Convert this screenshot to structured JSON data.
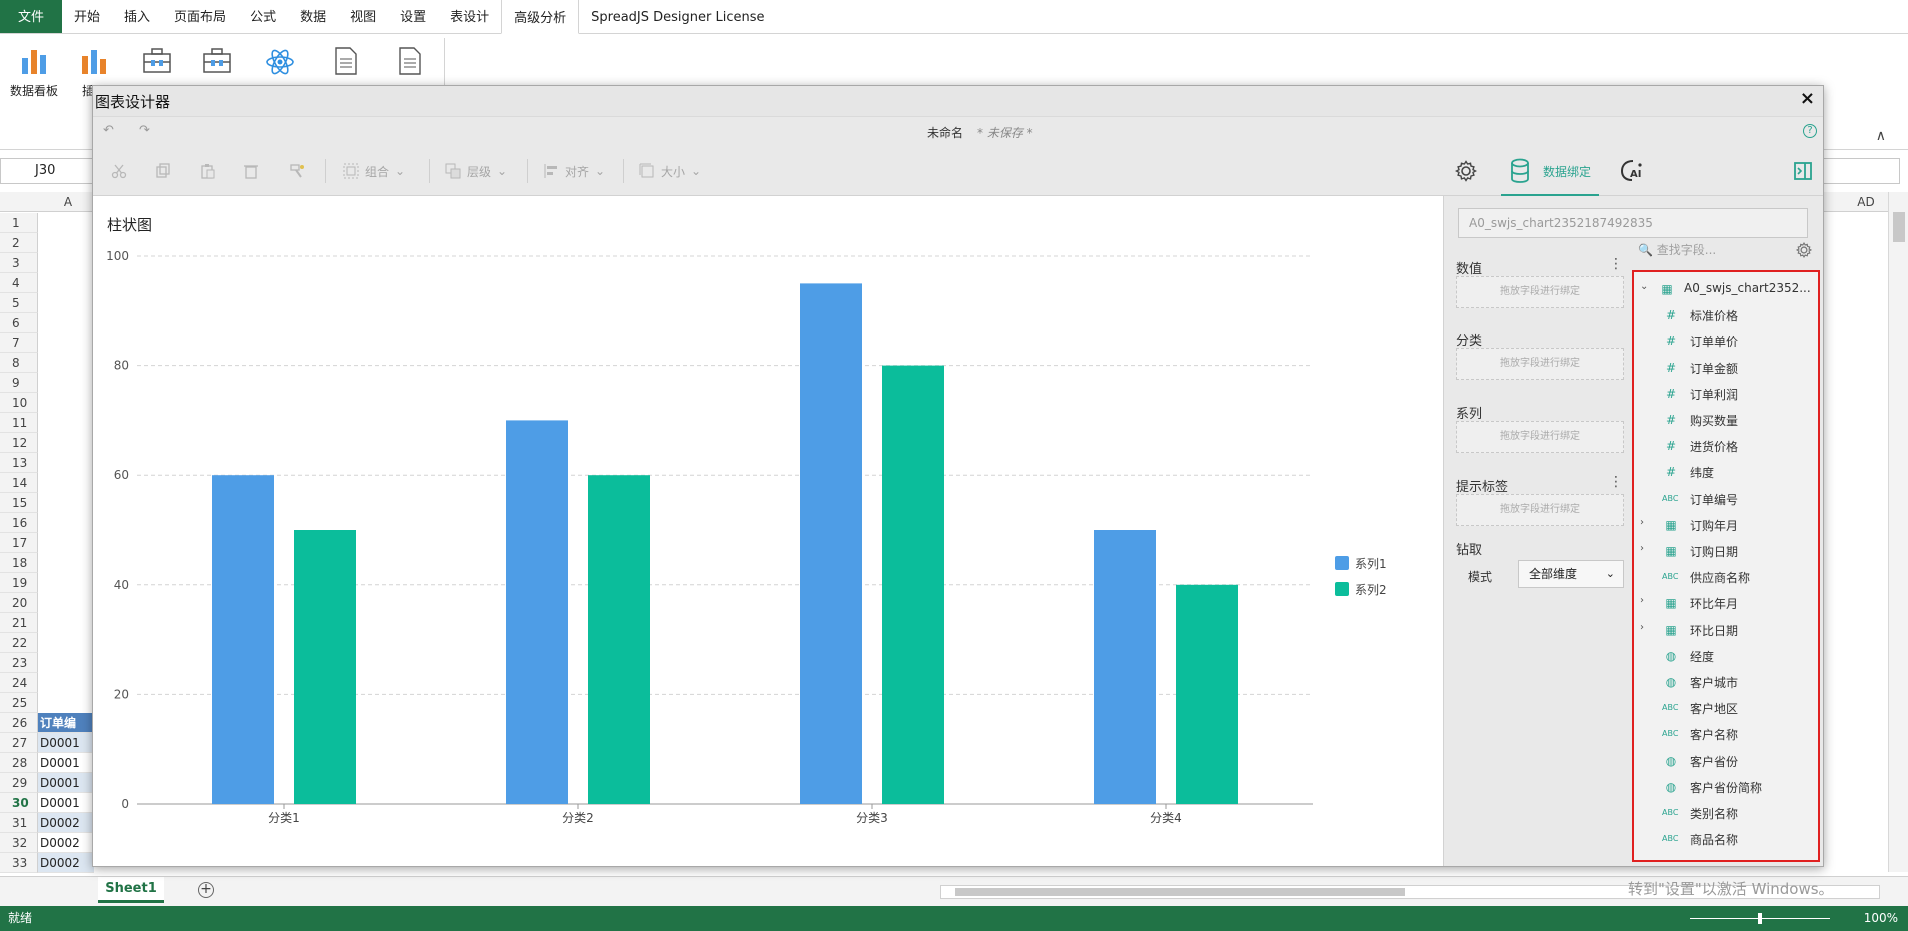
{
  "ribbon": {
    "tabs": [
      {
        "label": "文件",
        "kind": "file"
      },
      {
        "label": "开始",
        "kind": "normal"
      },
      {
        "label": "插入",
        "kind": "normal"
      },
      {
        "label": "页面布局",
        "kind": "normal"
      },
      {
        "label": "公式",
        "kind": "normal"
      },
      {
        "label": "数据",
        "kind": "normal"
      },
      {
        "label": "视图",
        "kind": "normal"
      },
      {
        "label": "设置",
        "kind": "normal"
      },
      {
        "label": "表设计",
        "kind": "normal"
      },
      {
        "label": "高级分析",
        "kind": "active"
      },
      {
        "label": "SpreadJS Designer License",
        "kind": "normal"
      }
    ],
    "buttons": [
      {
        "label": "数据看板",
        "icon": "bar-chart-icon"
      },
      {
        "label": "插入",
        "icon": "insert-chart-icon"
      }
    ]
  },
  "namebox": {
    "value": "J30"
  },
  "grid": {
    "columns": [
      "A",
      "AD"
    ],
    "rows": [
      {
        "num": "1"
      },
      {
        "num": "2"
      },
      {
        "num": "3"
      },
      {
        "num": "4"
      },
      {
        "num": "5"
      },
      {
        "num": "6"
      },
      {
        "num": "7"
      },
      {
        "num": "8"
      },
      {
        "num": "9"
      },
      {
        "num": "10"
      },
      {
        "num": "11"
      },
      {
        "num": "12"
      },
      {
        "num": "13"
      },
      {
        "num": "14"
      },
      {
        "num": "15"
      },
      {
        "num": "16"
      },
      {
        "num": "17"
      },
      {
        "num": "18"
      },
      {
        "num": "19"
      },
      {
        "num": "20"
      },
      {
        "num": "21"
      },
      {
        "num": "22"
      },
      {
        "num": "23"
      },
      {
        "num": "24"
      },
      {
        "num": "25"
      },
      {
        "num": "26",
        "cell": "订单编",
        "style": "hdr"
      },
      {
        "num": "27",
        "cell": "D0001",
        "style": "alt"
      },
      {
        "num": "28",
        "cell": "D0001",
        "style": ""
      },
      {
        "num": "29",
        "cell": "D0001",
        "style": "alt"
      },
      {
        "num": "30",
        "cell": "D0001",
        "style": "",
        "selected": true
      },
      {
        "num": "31",
        "cell": "D0002",
        "style": "alt"
      },
      {
        "num": "32",
        "cell": "D0002",
        "style": ""
      },
      {
        "num": "33",
        "cell": "D0002",
        "style": "alt"
      }
    ]
  },
  "sheet": {
    "tab": "Sheet1",
    "add": "+"
  },
  "status": {
    "text": "就绪",
    "zoom": "100%"
  },
  "watermark": "转到\"设置\"以激活 Windows。",
  "dialog": {
    "title": "图表设计器",
    "close": "×",
    "doc_name": "未命名",
    "unsaved": "* 未保存 *",
    "toolbar": {
      "group": "组合",
      "layer": "层级",
      "align": "对齐",
      "size": "大小"
    },
    "databind_tab": "数据绑定",
    "ai_tab": "AI",
    "chart_title": "柱状图",
    "panel": {
      "chart_id": "A0_swjs_chart2352187492835",
      "sections": [
        {
          "title": "数值",
          "placeholder": "拖放字段进行绑定",
          "menu": true
        },
        {
          "title": "分类",
          "placeholder": "拖放字段进行绑定",
          "menu": false
        },
        {
          "title": "系列",
          "placeholder": "拖放字段进行绑定",
          "menu": false
        },
        {
          "title": "提示标签",
          "placeholder": "拖放字段进行绑定",
          "menu": true
        }
      ],
      "drill": "钻取",
      "mode_label": "模式",
      "mode_value": "全部维度",
      "search_placeholder": "查找字段...",
      "fields": [
        {
          "label": "A0_swjs_chart2352...",
          "type": "table",
          "expand": "collapse",
          "root": true
        },
        {
          "label": "标准价格",
          "type": "number"
        },
        {
          "label": "订单单价",
          "type": "number"
        },
        {
          "label": "订单金额",
          "type": "number"
        },
        {
          "label": "订单利润",
          "type": "number"
        },
        {
          "label": "购买数量",
          "type": "number"
        },
        {
          "label": "进货价格",
          "type": "number"
        },
        {
          "label": "纬度",
          "type": "number"
        },
        {
          "label": "订单编号",
          "type": "text"
        },
        {
          "label": "订购年月",
          "type": "date",
          "expand": "expand"
        },
        {
          "label": "订购日期",
          "type": "date",
          "expand": "expand"
        },
        {
          "label": "供应商名称",
          "type": "text"
        },
        {
          "label": "环比年月",
          "type": "date",
          "expand": "expand"
        },
        {
          "label": "环比日期",
          "type": "date",
          "expand": "expand"
        },
        {
          "label": "经度",
          "type": "geo"
        },
        {
          "label": "客户城市",
          "type": "geo"
        },
        {
          "label": "客户地区",
          "type": "text"
        },
        {
          "label": "客户名称",
          "type": "text"
        },
        {
          "label": "客户省份",
          "type": "geo"
        },
        {
          "label": "客户省份简称",
          "type": "geo"
        },
        {
          "label": "类别名称",
          "type": "text"
        },
        {
          "label": "商品名称",
          "type": "text"
        }
      ]
    }
  },
  "chart_data": {
    "type": "bar",
    "title": "柱状图",
    "categories": [
      "分类1",
      "分类2",
      "分类3",
      "分类4"
    ],
    "series": [
      {
        "name": "系列1",
        "values": [
          60,
          70,
          95,
          50
        ],
        "color": "#4e9de6"
      },
      {
        "name": "系列2",
        "values": [
          50,
          60,
          80,
          40
        ],
        "color": "#0bbd9b"
      }
    ],
    "ylim": [
      0,
      100
    ],
    "yticks": [
      "0",
      "20",
      "40",
      "60",
      "80",
      "100"
    ],
    "grid": true,
    "legend": "right"
  }
}
